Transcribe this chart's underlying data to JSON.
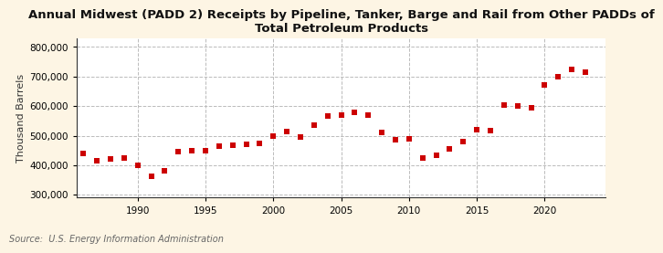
{
  "title": "Annual Midwest (PADD 2) Receipts by Pipeline, Tanker, Barge and Rail from Other PADDs of\nTotal Petroleum Products",
  "ylabel": "Thousand Barrels",
  "source": "Source:  U.S. Energy Information Administration",
  "background_color": "#fdf5e4",
  "plot_bg_color": "#ffffff",
  "marker_color": "#cc0000",
  "years": [
    1986,
    1987,
    1988,
    1989,
    1990,
    1991,
    1992,
    1993,
    1994,
    1995,
    1996,
    1997,
    1998,
    1999,
    2000,
    2001,
    2002,
    2003,
    2004,
    2005,
    2006,
    2007,
    2008,
    2009,
    2010,
    2011,
    2012,
    2013,
    2014,
    2015,
    2016,
    2017,
    2018,
    2019,
    2020,
    2021,
    2022,
    2023
  ],
  "values": [
    440000,
    415000,
    420000,
    425000,
    400000,
    362000,
    382000,
    445000,
    448000,
    448000,
    465000,
    468000,
    472000,
    475000,
    500000,
    515000,
    495000,
    535000,
    565000,
    570000,
    580000,
    570000,
    510000,
    485000,
    490000,
    425000,
    435000,
    455000,
    480000,
    520000,
    517000,
    605000,
    600000,
    593000,
    670000,
    700000,
    725000,
    715000
  ],
  "ylim": [
    290000,
    830000
  ],
  "yticks": [
    300000,
    400000,
    500000,
    600000,
    700000,
    800000
  ],
  "xlim": [
    1985.5,
    2024.5
  ],
  "xticks": [
    1990,
    1995,
    2000,
    2005,
    2010,
    2015,
    2020
  ],
  "grid_color": "#bbbbbb",
  "title_fontsize": 9.5,
  "axis_fontsize": 8,
  "source_fontsize": 7,
  "tick_fontsize": 7.5
}
